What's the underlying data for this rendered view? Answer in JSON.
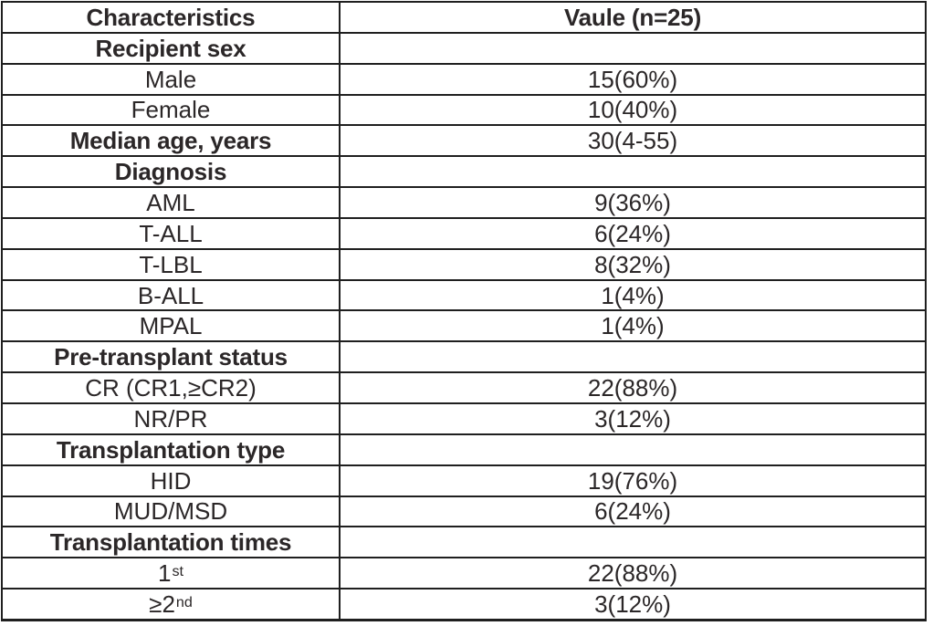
{
  "colors": {
    "text": "#2b2728",
    "border": "#1f1f1f",
    "background": "#ffffff"
  },
  "table": {
    "header": {
      "characteristics": "Characteristics",
      "value": "Vaule (n=25)"
    },
    "rows": [
      {
        "label": "Recipient sex",
        "value": "",
        "bold": true
      },
      {
        "label": "Male",
        "value": "15(60%)",
        "bold": false
      },
      {
        "label": "Female",
        "value": "10(40%)",
        "bold": false
      },
      {
        "label": "Median age, years",
        "value": "30(4-55)",
        "bold": true
      },
      {
        "label": "Diagnosis",
        "value": "",
        "bold": true
      },
      {
        "label": "AML",
        "value": "9(36%)",
        "bold": false
      },
      {
        "label": "T-ALL",
        "value": "6(24%)",
        "bold": false
      },
      {
        "label": "T-LBL",
        "value": "8(32%)",
        "bold": false
      },
      {
        "label": "B-ALL",
        "value": "1(4%)",
        "bold": false
      },
      {
        "label": "MPAL",
        "value": "1(4%)",
        "bold": false
      },
      {
        "label": "Pre-transplant status",
        "value": "",
        "bold": true
      },
      {
        "label": "CR (CR1,≥CR2)",
        "value": "22(88%)",
        "bold": false
      },
      {
        "label": "NR/PR",
        "value": "3(12%)",
        "bold": false
      },
      {
        "label": "Transplantation type",
        "value": "",
        "bold": true
      },
      {
        "label": "HID",
        "value": "19(76%)",
        "bold": false
      },
      {
        "label": "MUD/MSD",
        "value": "6(24%)",
        "bold": false
      },
      {
        "label": "Transplantation times",
        "value": "",
        "bold": true
      },
      {
        "label": "1",
        "label_sup": "st",
        "value": "22(88%)",
        "bold": false
      },
      {
        "label": "≥2",
        "label_sup": "nd",
        "value": "3(12%)",
        "bold": false
      }
    ]
  }
}
